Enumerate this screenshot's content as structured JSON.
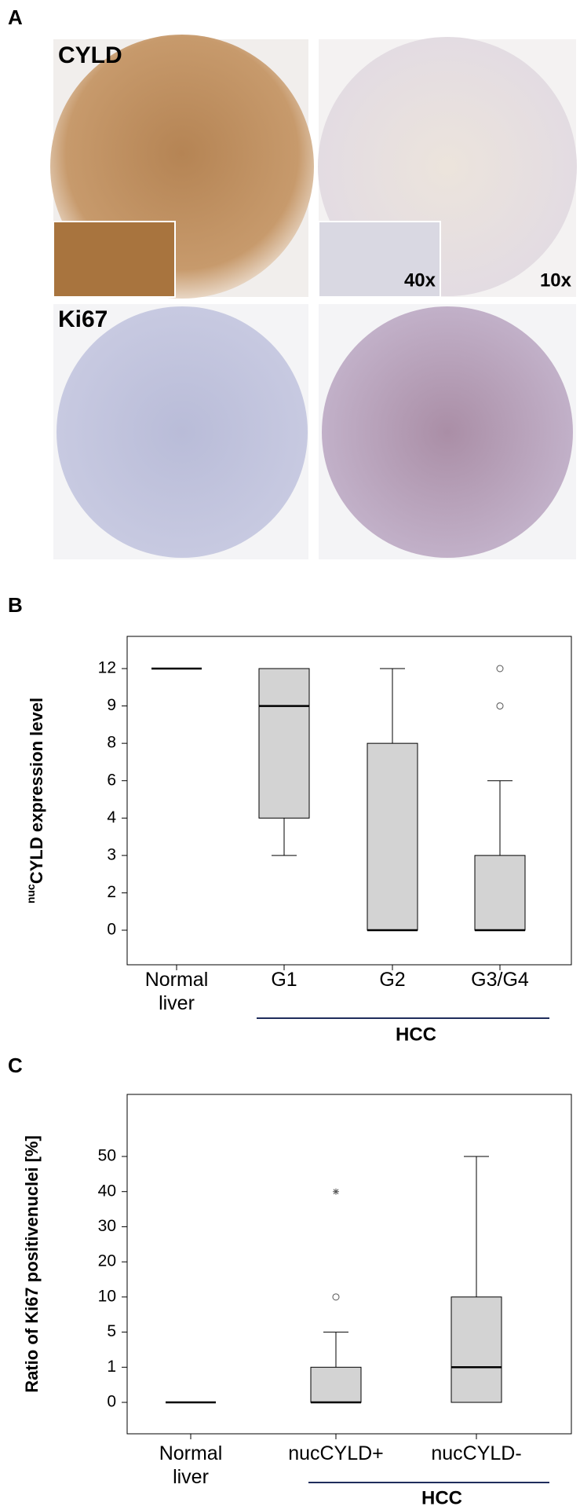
{
  "panel_labels": [
    "A",
    "B",
    "C"
  ],
  "panel_a": {
    "row_labels": [
      "CYLD",
      "Ki67"
    ],
    "magnifications": [
      "40x",
      "10x"
    ]
  },
  "chart_data": [
    {
      "type": "box",
      "y_label_sup": "nuc",
      "y_label": "CYLD expression level",
      "yscale": "ordinal",
      "categories": [
        "Normal liver",
        "G1",
        "G2",
        "G3/G4"
      ],
      "group_label": "HCC",
      "yticks": [
        0,
        2,
        3,
        4,
        6,
        8,
        9,
        12
      ],
      "color": "#d3d3d3",
      "boxes": [
        {
          "min": 12,
          "q1": 12,
          "median": 12,
          "q3": 12,
          "max": 12,
          "outliers": [],
          "extremes": []
        },
        {
          "min": 3,
          "q1": 4,
          "median": 9,
          "q3": 12,
          "max": 12,
          "outliers": [],
          "extremes": []
        },
        {
          "min": 0,
          "q1": 0,
          "median": 0,
          "q3": 8,
          "max": 12,
          "outliers": [],
          "extremes": []
        },
        {
          "min": 0,
          "q1": 0,
          "median": 0,
          "q3": 3,
          "max": 6,
          "outliers": [
            9,
            12
          ],
          "extremes": []
        }
      ]
    },
    {
      "type": "box",
      "y_label": "Ratio of Ki67 positivenuclei [%]",
      "yscale": "ordinal",
      "categories": [
        "Normal liver",
        "nucCYLD+",
        "nucCYLD-"
      ],
      "group_label": "HCC",
      "yticks": [
        0,
        1,
        5,
        10,
        20,
        30,
        40,
        50
      ],
      "color": "#d3d3d3",
      "boxes": [
        {
          "min": 0,
          "q1": 0,
          "median": 0,
          "q3": 0,
          "max": 0,
          "outliers": [],
          "extremes": []
        },
        {
          "min": 0,
          "q1": 0,
          "median": 0,
          "q3": 1,
          "max": 5,
          "outliers": [
            10
          ],
          "extremes": [
            40
          ]
        },
        {
          "min": 0,
          "q1": 0,
          "median": 1,
          "q3": 10,
          "max": 50,
          "outliers": [],
          "extremes": []
        }
      ]
    }
  ]
}
